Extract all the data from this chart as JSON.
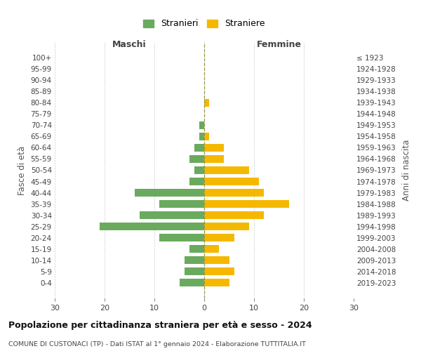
{
  "age_groups": [
    "0-4",
    "5-9",
    "10-14",
    "15-19",
    "20-24",
    "25-29",
    "30-34",
    "35-39",
    "40-44",
    "45-49",
    "50-54",
    "55-59",
    "60-64",
    "65-69",
    "70-74",
    "75-79",
    "80-84",
    "85-89",
    "90-94",
    "95-99",
    "100+"
  ],
  "birth_years": [
    "2019-2023",
    "2014-2018",
    "2009-2013",
    "2004-2008",
    "1999-2003",
    "1994-1998",
    "1989-1993",
    "1984-1988",
    "1979-1983",
    "1974-1978",
    "1969-1973",
    "1964-1968",
    "1959-1963",
    "1954-1958",
    "1949-1953",
    "1944-1948",
    "1939-1943",
    "1934-1938",
    "1929-1933",
    "1924-1928",
    "≤ 1923"
  ],
  "males": [
    5,
    4,
    4,
    3,
    9,
    21,
    13,
    9,
    14,
    3,
    2,
    3,
    2,
    1,
    1,
    0,
    0,
    0,
    0,
    0,
    0
  ],
  "females": [
    5,
    6,
    5,
    3,
    6,
    9,
    12,
    17,
    12,
    11,
    9,
    4,
    4,
    1,
    0,
    0,
    1,
    0,
    0,
    0,
    0
  ],
  "male_color": "#6aaa5e",
  "female_color": "#f5b800",
  "title": "Popolazione per cittadinanza straniera per età e sesso - 2024",
  "subtitle": "COMUNE DI CUSTONACI (TP) - Dati ISTAT al 1° gennaio 2024 - Elaborazione TUTTITALIA.IT",
  "legend_male": "Stranieri",
  "legend_female": "Straniere",
  "xlabel_left": "Maschi",
  "xlabel_right": "Femmine",
  "ylabel_left": "Fasce di età",
  "ylabel_right": "Anni di nascita",
  "xlim": 30,
  "background_color": "#ffffff",
  "grid_color": "#cccccc"
}
